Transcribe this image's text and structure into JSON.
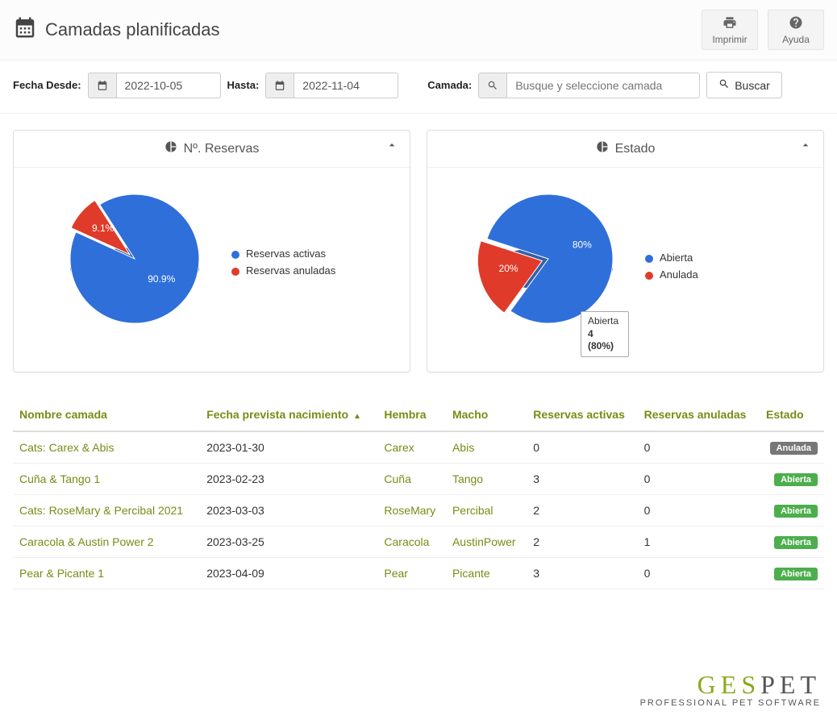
{
  "header": {
    "title": "Camadas planificadas",
    "print_label": "Imprimir",
    "help_label": "Ayuda"
  },
  "filters": {
    "from_label": "Fecha Desde:",
    "from_value": "2022-10-05",
    "to_label": "Hasta:",
    "to_value": "2022-11-04",
    "search_label": "Camada:",
    "search_placeholder": "Busque y seleccione camada",
    "search_button": "Buscar"
  },
  "reservas_chart": {
    "title": "Nº. Reservas",
    "type": "pie",
    "slices": [
      {
        "label": "Reservas activas",
        "percent": 90.9,
        "display": "90.9%",
        "color": "#2e6fda",
        "edge": "#1f4fa0"
      },
      {
        "label": "Reservas anuladas",
        "percent": 9.1,
        "display": "9.1%",
        "color": "#e03b2a",
        "edge": "#a82a1d"
      }
    ],
    "legend_text_color": "#333333",
    "label_fontsize": 12,
    "title_fontsize": 16
  },
  "estado_chart": {
    "title": "Estado",
    "type": "pie",
    "slices": [
      {
        "label": "Abierta",
        "percent": 80,
        "display": "80%",
        "color": "#2e6fda",
        "edge": "#1f4fa0"
      },
      {
        "label": "Anulada",
        "percent": 20,
        "display": "20%",
        "color": "#e03b2a",
        "edge": "#a82a1d"
      }
    ],
    "tooltip": {
      "line1": "Abierta",
      "line2": "4 (80%)"
    },
    "legend_text_color": "#333333",
    "label_fontsize": 12,
    "title_fontsize": 16
  },
  "table": {
    "columns": {
      "nombre": "Nombre camada",
      "fecha": "Fecha prevista nacimiento",
      "hembra": "Hembra",
      "macho": "Macho",
      "activas": "Reservas activas",
      "anuladas": "Reservas anuladas",
      "estado": "Estado"
    },
    "header_link_color": "#7a8a14",
    "sorted_column": "fecha",
    "badge_colors": {
      "Abierta": "#4cae4c",
      "Anulada": "#777777"
    },
    "rows": [
      {
        "nombre": "Cats: Carex & Abis",
        "fecha": "2023-01-30",
        "hembra": "Carex",
        "macho": "Abis",
        "activas": "0",
        "anuladas": "0",
        "estado": "Anulada"
      },
      {
        "nombre": "Cuña & Tango 1",
        "fecha": "2023-02-23",
        "hembra": "Cuña",
        "macho": "Tango",
        "activas": "3",
        "anuladas": "0",
        "estado": "Abierta"
      },
      {
        "nombre": "Cats: RoseMary & Percibal 2021",
        "fecha": "2023-03-03",
        "hembra": "RoseMary",
        "macho": "Percibal",
        "activas": "2",
        "anuladas": "0",
        "estado": "Abierta"
      },
      {
        "nombre": "Caracola & Austin Power 2",
        "fecha": "2023-03-25",
        "hembra": "Caracola",
        "macho": "AustinPower",
        "activas": "2",
        "anuladas": "1",
        "estado": "Abierta"
      },
      {
        "nombre": "Pear & Picante 1",
        "fecha": "2023-04-09",
        "hembra": "Pear",
        "macho": "Picante",
        "activas": "3",
        "anuladas": "0",
        "estado": "Abierta"
      }
    ]
  },
  "footer": {
    "brand_name": "GESPET",
    "brand_olive_chars": "GES",
    "brand_rest_chars": "PET",
    "tagline": "PROFESSIONAL PET SOFTWARE"
  }
}
